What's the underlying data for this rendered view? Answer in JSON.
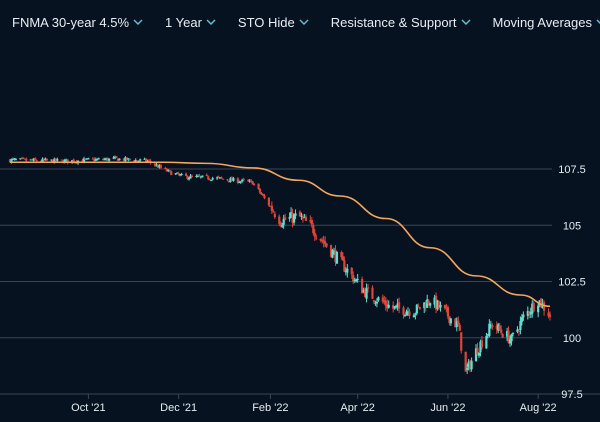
{
  "toolbar": {
    "items": [
      {
        "label": "FNMA 30-year 4.5%",
        "icon": "chevron-down-icon"
      },
      {
        "label": "1 Year",
        "icon": "chevron-down-icon"
      },
      {
        "label": "STO Hide",
        "icon": "chevron-down-icon"
      },
      {
        "label": "Resistance & Support",
        "icon": "chevron-down-icon"
      },
      {
        "label": "Moving Averages",
        "icon": "chevron-down-icon"
      }
    ]
  },
  "colors": {
    "background": "#06121f",
    "up": "#5ce1d0",
    "down": "#e0453a",
    "moving_average": "#f5a65b",
    "grid": "#3a4654",
    "text": "#e6edf3",
    "chevron": "#5bc8d8"
  },
  "chart_data": {
    "type": "candlestick",
    "title": "",
    "xlabel": "",
    "ylabel": "",
    "x_range": [
      "2021-08-09",
      "2022-08-09"
    ],
    "ylim": [
      97.5,
      108.5
    ],
    "y_ticks": [
      97.5,
      100,
      102.5,
      105,
      107.5
    ],
    "y_tick_labels": [
      "97.5",
      "100",
      "102.5",
      "105",
      "107.5"
    ],
    "x_ticks": [
      "2021-10-01",
      "2021-12-01",
      "2022-02-01",
      "2022-04-01",
      "2022-06-01",
      "2022-08-01"
    ],
    "x_tick_labels": [
      "Oct '21",
      "Dec '21",
      "Feb '22",
      "Apr '22",
      "Jun '22",
      "Aug '22"
    ],
    "grid": true,
    "price_anchors": [
      {
        "date": "2021-08-09",
        "close": 107.9
      },
      {
        "date": "2021-09-15",
        "close": 107.85
      },
      {
        "date": "2021-10-20",
        "close": 107.95
      },
      {
        "date": "2021-11-10",
        "close": 107.85
      },
      {
        "date": "2021-11-25",
        "close": 107.35
      },
      {
        "date": "2021-12-05",
        "close": 107.15
      },
      {
        "date": "2021-12-25",
        "close": 107.1
      },
      {
        "date": "2022-01-20",
        "close": 106.9
      },
      {
        "date": "2022-02-08",
        "close": 105.2
      },
      {
        "date": "2022-02-20",
        "close": 105.4
      },
      {
        "date": "2022-03-01",
        "close": 104.9
      },
      {
        "date": "2022-03-20",
        "close": 103.4
      },
      {
        "date": "2022-04-05",
        "close": 102.1
      },
      {
        "date": "2022-04-25",
        "close": 101.3
      },
      {
        "date": "2022-05-10",
        "close": 101.2
      },
      {
        "date": "2022-05-20",
        "close": 101.7
      },
      {
        "date": "2022-06-01",
        "close": 101.0
      },
      {
        "date": "2022-06-08",
        "close": 100.5
      },
      {
        "date": "2022-06-13",
        "close": 98.4
      },
      {
        "date": "2022-06-20",
        "close": 99.4
      },
      {
        "date": "2022-07-01",
        "close": 100.6
      },
      {
        "date": "2022-07-14",
        "close": 99.9
      },
      {
        "date": "2022-07-22",
        "close": 100.9
      },
      {
        "date": "2022-08-01",
        "close": 101.7
      },
      {
        "date": "2022-08-09",
        "close": 101.0
      }
    ],
    "moving_average": {
      "name": "",
      "points": [
        {
          "date": "2021-08-09",
          "value": 107.8
        },
        {
          "date": "2021-11-20",
          "value": 107.8
        },
        {
          "date": "2021-12-20",
          "value": 107.75
        },
        {
          "date": "2022-01-20",
          "value": 107.55
        },
        {
          "date": "2022-02-20",
          "value": 107.0
        },
        {
          "date": "2022-03-20",
          "value": 106.3
        },
        {
          "date": "2022-04-20",
          "value": 105.3
        },
        {
          "date": "2022-05-20",
          "value": 104.0
        },
        {
          "date": "2022-06-20",
          "value": 102.75
        },
        {
          "date": "2022-07-20",
          "value": 101.9
        },
        {
          "date": "2022-08-09",
          "value": 101.4
        }
      ]
    }
  }
}
